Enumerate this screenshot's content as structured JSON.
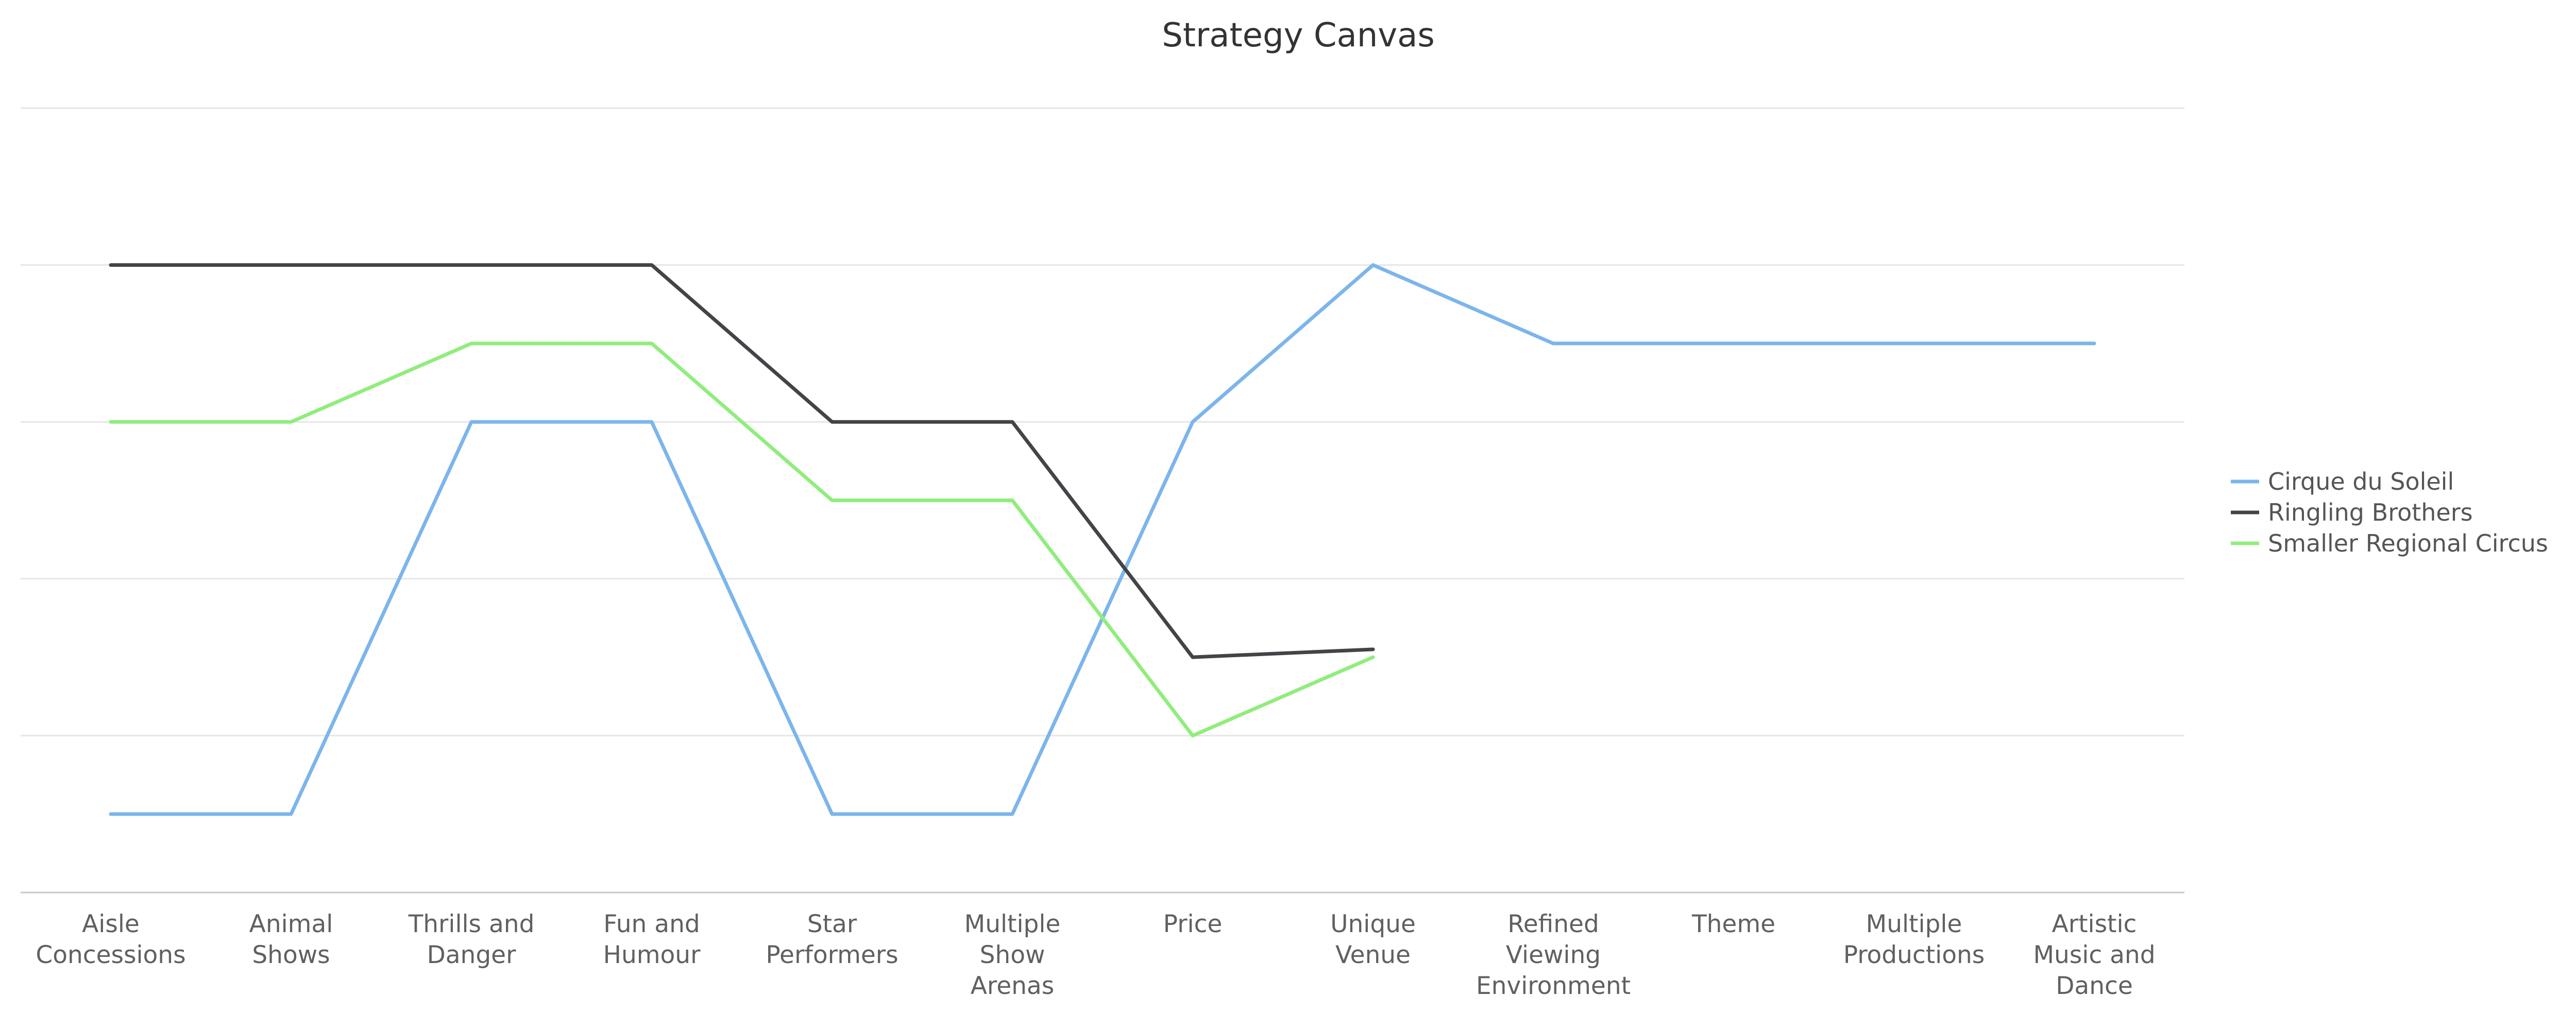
{
  "chart_data": {
    "type": "line",
    "title": "Strategy Canvas",
    "xlabel": "",
    "ylabel": "",
    "categories": [
      [
        "Aisle",
        "Concessions"
      ],
      [
        "Animal",
        "Shows"
      ],
      [
        "Thrills and",
        "Danger"
      ],
      [
        "Fun and",
        "Humour"
      ],
      [
        "Star",
        "Performers"
      ],
      [
        "Multiple",
        "Show",
        "Arenas"
      ],
      [
        "Price"
      ],
      [
        "Unique",
        "Venue"
      ],
      [
        "Refined",
        "Viewing",
        "Environment"
      ],
      [
        "Theme"
      ],
      [
        "Multiple",
        "Productions"
      ],
      [
        "Artistic",
        "Music and",
        "Dance"
      ]
    ],
    "ylim": [
      0,
      5
    ],
    "grid": true,
    "legend_position": "right",
    "series": [
      {
        "name": "Cirque du Soleil",
        "color": "#7cb5ec",
        "values": [
          0.5,
          0.5,
          3,
          3,
          0.5,
          0.5,
          3,
          4,
          3.5,
          3.5,
          3.5,
          3.5
        ]
      },
      {
        "name": "Ringling Brothers",
        "color": "#434348",
        "values": [
          4,
          4,
          4,
          4,
          3,
          3,
          1.5,
          1.55,
          null,
          null,
          null,
          null
        ]
      },
      {
        "name": "Smaller Regional Circus",
        "color": "#90ed7d",
        "values": [
          3,
          3,
          3.5,
          3.5,
          2.5,
          2.5,
          1,
          1.5,
          null,
          null,
          null,
          null
        ]
      }
    ]
  }
}
